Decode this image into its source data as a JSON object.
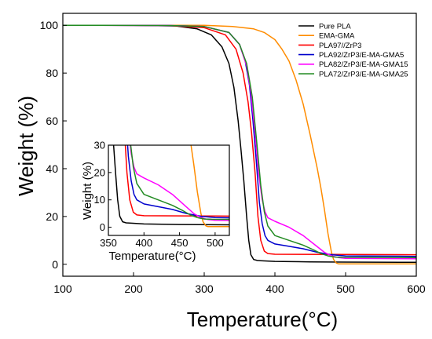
{
  "chart_data": {
    "type": "line",
    "xlabel": "Temperature(°C)",
    "ylabel": "Weight (%)",
    "xlim": [
      100,
      600
    ],
    "ylim": [
      -5,
      105
    ],
    "xticks": [
      100,
      200,
      300,
      400,
      500,
      600
    ],
    "yticks": [
      0,
      20,
      40,
      60,
      80,
      100
    ],
    "legend_position": "top-right",
    "grid": false,
    "series": [
      {
        "name": "Pure PLA",
        "color": "#000000",
        "x": [
          100,
          200,
          260,
          290,
          310,
          325,
          335,
          342,
          348,
          352,
          356,
          360,
          363,
          366,
          370,
          375,
          380,
          400,
          450,
          500,
          600
        ],
        "y": [
          100,
          100,
          99.7,
          98.5,
          96,
          91,
          84,
          74,
          60,
          48,
          35,
          20,
          10,
          4,
          2,
          1.6,
          1.5,
          1.2,
          1.0,
          0.9,
          0.8
        ]
      },
      {
        "name": "EMA-GMA",
        "color": "#ff8c00",
        "x": [
          100,
          300,
          340,
          370,
          385,
          400,
          410,
          420,
          430,
          440,
          450,
          460,
          465,
          470,
          475,
          480,
          483,
          487,
          490,
          500,
          600
        ],
        "y": [
          100,
          100,
          99.5,
          98.5,
          97,
          94,
          90,
          85,
          77,
          67,
          54,
          40,
          32,
          23,
          13,
          5,
          2,
          0.5,
          0.2,
          0.2,
          0.2
        ]
      },
      {
        "name": "PLA97//ZrP3",
        "color": "#ff0000",
        "x": [
          100,
          250,
          300,
          330,
          345,
          355,
          362,
          367,
          372,
          376,
          380,
          385,
          390,
          400,
          500,
          600
        ],
        "y": [
          100,
          99.9,
          99,
          96,
          90,
          80,
          68,
          55,
          38,
          20,
          10,
          5.5,
          4.5,
          4.2,
          4.1,
          4.0
        ]
      },
      {
        "name": "PLA92/ZrP3/E-MA-GMA5",
        "color": "#0000cd",
        "x": [
          100,
          250,
          300,
          335,
          350,
          358,
          364,
          369,
          374,
          378,
          382,
          386,
          390,
          400,
          420,
          440,
          460,
          480,
          500,
          600
        ],
        "y": [
          100,
          99.9,
          99.5,
          97,
          92,
          85,
          75,
          60,
          42,
          26,
          17,
          12,
          10,
          8.5,
          7.5,
          6.5,
          5,
          4,
          3.5,
          3.3
        ]
      },
      {
        "name": "PLA82/ZrP3/E-MA-GMA15",
        "color": "#ff00ff",
        "x": [
          100,
          250,
          300,
          335,
          350,
          360,
          366,
          372,
          377,
          382,
          386,
          390,
          400,
          420,
          440,
          455,
          470,
          480,
          490,
          500,
          600
        ],
        "y": [
          100,
          99.9,
          99.5,
          97,
          92,
          83,
          72,
          55,
          38,
          27,
          22,
          19.5,
          18,
          15.5,
          12,
          8.5,
          5,
          3.5,
          2.8,
          2.5,
          2.3
        ]
      },
      {
        "name": "PLA72/ZrP3/E-MA-GMA25",
        "color": "#228b22",
        "x": [
          100,
          250,
          300,
          335,
          350,
          360,
          368,
          374,
          380,
          385,
          390,
          400,
          420,
          440,
          455,
          465,
          475,
          485,
          495,
          600
        ],
        "y": [
          100,
          99.9,
          99.5,
          97,
          92,
          84,
          70,
          52,
          33,
          22,
          16,
          12,
          10,
          8,
          6,
          4.5,
          3.5,
          3.0,
          2.9,
          2.8
        ]
      }
    ],
    "inset": {
      "xlabel": "Temperature(°C)",
      "ylabel": "Weight (%)",
      "xlim": [
        350,
        520
      ],
      "ylim": [
        -3,
        30
      ],
      "xticks": [
        350,
        400,
        450,
        500
      ],
      "yticks": [
        0,
        10,
        20,
        30
      ]
    }
  }
}
